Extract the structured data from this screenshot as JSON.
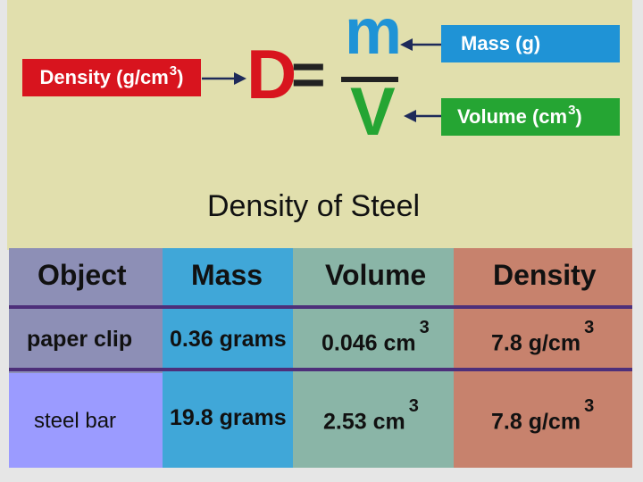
{
  "formula": {
    "density_label": "Density (g/cm",
    "density_exp": "3",
    "density_close": ")",
    "d": "D",
    "equals": "=",
    "m": "m",
    "v": "V",
    "mass_label": "Mass  (g)",
    "volume_label": "Volume (cm",
    "volume_exp": "3",
    "volume_close": ")"
  },
  "title": "Density of Steel",
  "table": {
    "headers": [
      "Object",
      "Mass",
      "Volume",
      "Density"
    ],
    "rows": [
      {
        "object": "paper clip",
        "mass": "0.36 grams",
        "volume": "0.046 cm",
        "volume_exp": "3",
        "density": "7.8 g/cm",
        "density_exp": "3"
      },
      {
        "object": "steel bar",
        "mass": "19.8 grams",
        "volume": "2.53 cm",
        "volume_exp": "3",
        "density": "7.8 g/cm",
        "density_exp": "3"
      }
    ]
  },
  "colors": {
    "panel_bg": "#e1dfad",
    "density_red": "#d8141e",
    "mass_blue": "#1f93d6",
    "volume_green": "#25a533"
  }
}
